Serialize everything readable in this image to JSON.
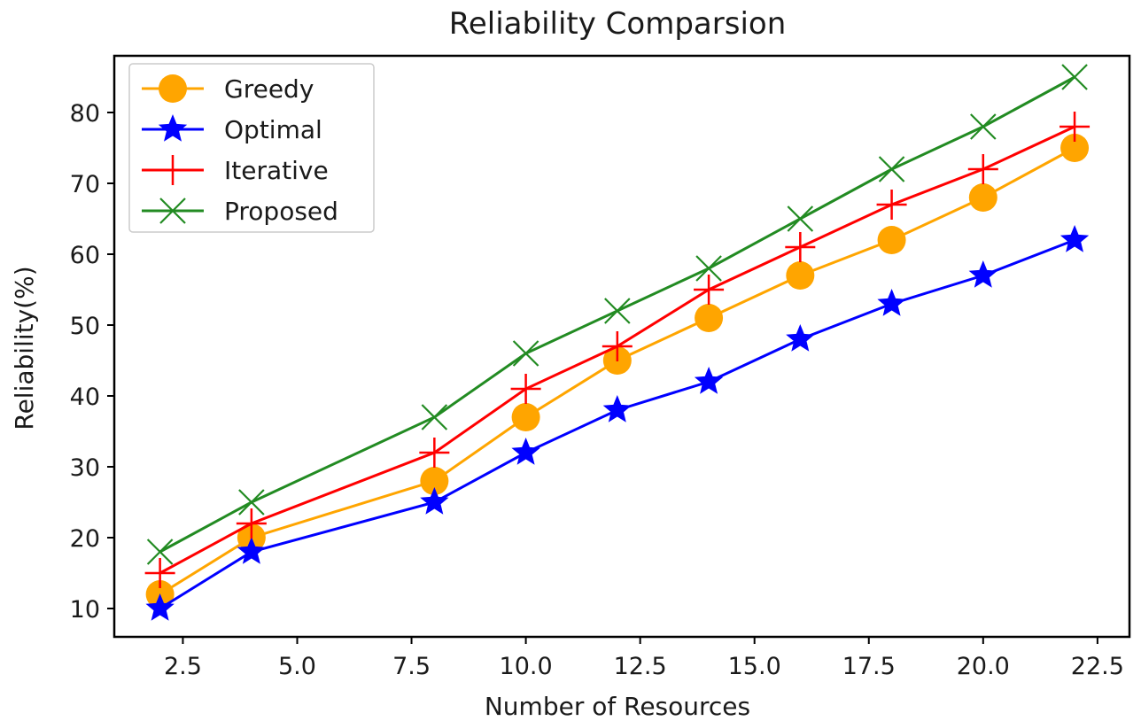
{
  "chart_data": {
    "type": "line",
    "title": "Reliability Comparsion",
    "xlabel": "Number of Resources",
    "ylabel": "Reliability(%)",
    "xlim": [
      1.0,
      23.2
    ],
    "ylim": [
      6,
      88
    ],
    "xticks": [
      2.5,
      5.0,
      7.5,
      10.0,
      12.5,
      15.0,
      17.5,
      20.0,
      22.5
    ],
    "xtick_labels": [
      "2.5",
      "5.0",
      "7.5",
      "10.0",
      "12.5",
      "15.0",
      "17.5",
      "20.0",
      "22.5"
    ],
    "yticks": [
      10,
      20,
      30,
      40,
      50,
      60,
      70,
      80
    ],
    "ytick_labels": [
      "10",
      "20",
      "30",
      "40",
      "50",
      "60",
      "70",
      "80"
    ],
    "grid": false,
    "legend_position": "top-left",
    "x": [
      2,
      4,
      8,
      10,
      12,
      14,
      16,
      18,
      20,
      22
    ],
    "series": [
      {
        "name": "Greedy",
        "color": "#ffa500",
        "marker": "circle",
        "values": [
          12,
          20,
          28,
          37,
          45,
          51,
          57,
          62,
          68,
          75
        ]
      },
      {
        "name": "Optimal",
        "color": "#0000ff",
        "marker": "star",
        "values": [
          10,
          18,
          25,
          32,
          38,
          42,
          48,
          53,
          57,
          62
        ]
      },
      {
        "name": "Iterative",
        "color": "#ff0000",
        "marker": "plus",
        "values": [
          15,
          22,
          32,
          41,
          47,
          55,
          61,
          67,
          72,
          78
        ]
      },
      {
        "name": "Proposed",
        "color": "#228b22",
        "marker": "x",
        "values": [
          18,
          25,
          37,
          46,
          52,
          58,
          65,
          72,
          78,
          85
        ]
      }
    ]
  }
}
